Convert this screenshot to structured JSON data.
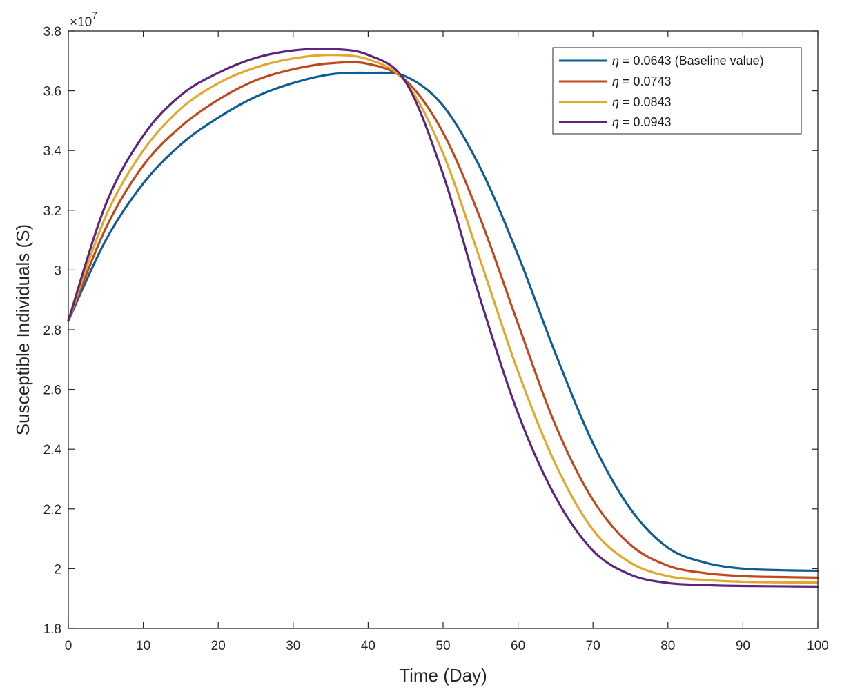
{
  "chart_data": {
    "type": "line",
    "title": "",
    "xlabel": "Time (Day)",
    "ylabel": "Susceptible Individuals (S)",
    "xlim": [
      0,
      100
    ],
    "ylim": [
      1.8,
      3.8
    ],
    "y_multiplier_base": "×10",
    "y_multiplier_exponent": "7",
    "xticks": [
      "0",
      "10",
      "20",
      "30",
      "40",
      "50",
      "60",
      "70",
      "80",
      "90",
      "100"
    ],
    "yticks": [
      "1.8",
      "2",
      "2.2",
      "2.4",
      "2.6",
      "2.8",
      "3",
      "3.2",
      "3.4",
      "3.6",
      "3.8"
    ],
    "legend_position": "top-right",
    "x": [
      0,
      5,
      10,
      15,
      20,
      25,
      30,
      35,
      40,
      45,
      50,
      55,
      60,
      65,
      70,
      75,
      80,
      85,
      90,
      95,
      100
    ],
    "series": [
      {
        "name": "η = 0.0643 (Baseline value)",
        "legend_symbol": "η",
        "legend_rest": " = 0.0643 (Baseline value)",
        "color": "#0d5d96",
        "values": [
          2.83,
          3.1,
          3.29,
          3.42,
          3.51,
          3.58,
          3.626,
          3.655,
          3.66,
          3.648,
          3.55,
          3.34,
          3.05,
          2.72,
          2.42,
          2.2,
          2.07,
          2.02,
          2.0,
          1.995,
          1.993
        ]
      },
      {
        "name": "η = 0.0743",
        "legend_symbol": "η",
        "legend_rest": " = 0.0743",
        "color": "#c2471d",
        "values": [
          2.83,
          3.14,
          3.35,
          3.48,
          3.57,
          3.635,
          3.672,
          3.692,
          3.69,
          3.635,
          3.46,
          3.17,
          2.82,
          2.48,
          2.23,
          2.08,
          2.01,
          1.985,
          1.975,
          1.972,
          1.97
        ]
      },
      {
        "name": "η = 0.0843",
        "legend_symbol": "η",
        "legend_rest": " = 0.0843",
        "color": "#e1a82c",
        "values": [
          2.83,
          3.18,
          3.4,
          3.54,
          3.625,
          3.678,
          3.708,
          3.72,
          3.705,
          3.63,
          3.39,
          3.03,
          2.66,
          2.35,
          2.13,
          2.02,
          1.975,
          1.962,
          1.956,
          1.954,
          1.953
        ]
      },
      {
        "name": "η = 0.0943",
        "legend_symbol": "η",
        "legend_rest": " = 0.0943",
        "color": "#5e2580",
        "values": [
          2.83,
          3.22,
          3.45,
          3.585,
          3.66,
          3.71,
          3.735,
          3.74,
          3.72,
          3.63,
          3.32,
          2.9,
          2.52,
          2.24,
          2.06,
          1.98,
          1.952,
          1.945,
          1.942,
          1.941,
          1.94
        ]
      }
    ]
  }
}
